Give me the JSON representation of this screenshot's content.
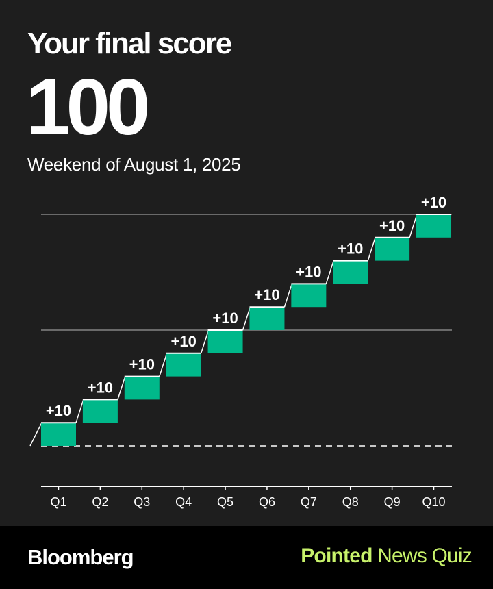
{
  "header": {
    "title": "Your final score",
    "score": "100",
    "subtitle": "Weekend of August 1, 2025"
  },
  "chart_data": {
    "type": "bar",
    "categories": [
      "Q1",
      "Q2",
      "Q3",
      "Q4",
      "Q5",
      "Q6",
      "Q7",
      "Q8",
      "Q9",
      "Q10"
    ],
    "values": [
      10,
      10,
      10,
      10,
      10,
      10,
      10,
      10,
      10,
      10
    ],
    "data_labels": [
      "+10",
      "+10",
      "+10",
      "+10",
      "+10",
      "+10",
      "+10",
      "+10",
      "+10",
      "+10"
    ],
    "ylim": [
      0,
      100
    ],
    "gridlines": [
      50,
      100
    ],
    "colors": {
      "bar": "#00b88a",
      "background": "#1e1e1e",
      "grid": "#6a6a6a"
    }
  },
  "footer": {
    "brand": "Bloomberg",
    "quiz_strong": "Pointed",
    "quiz_rest": " News Quiz",
    "accent_color": "#c8f26b"
  }
}
